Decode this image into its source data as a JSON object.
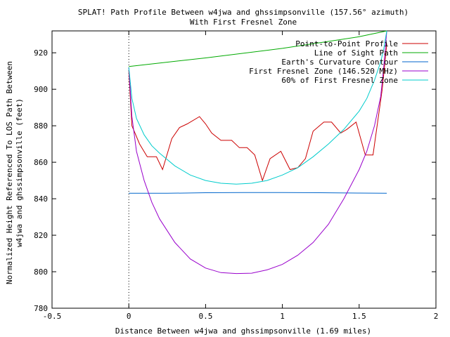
{
  "chart_data": {
    "type": "line",
    "title": "SPLAT! Path Profile Between w4jwa and ghssimpsonville (157.56° azimuth)",
    "subtitle": "With First Fresnel Zone",
    "xlabel": "Distance Between w4jwa and ghssimpsonville (1.69 miles)",
    "ylabel": "Normalized Height Referenced To LOS Path Between",
    "ylabel2": "w4jwa and ghssimpsonville (feet)",
    "xlim": [
      -0.5,
      2
    ],
    "ylim": [
      780,
      932
    ],
    "xticks": [
      -0.5,
      0,
      0.5,
      1,
      1.5,
      2
    ],
    "xtick_labels": [
      "-0.5",
      "0",
      "0.5",
      "1",
      "1.5",
      "2"
    ],
    "yticks": [
      780,
      800,
      820,
      840,
      860,
      880,
      900,
      920
    ],
    "ytick_labels": [
      "780",
      "800",
      "820",
      "840",
      "860",
      "880",
      "900",
      "920"
    ],
    "grid": false,
    "legend_position": "top-right",
    "series": [
      {
        "name": "Point-to-Point Profile",
        "color": "#cc0000",
        "x": [
          0,
          0.02,
          0.07,
          0.12,
          0.15,
          0.18,
          0.22,
          0.28,
          0.33,
          0.38,
          0.46,
          0.5,
          0.54,
          0.6,
          0.67,
          0.72,
          0.77,
          0.82,
          0.87,
          0.92,
          0.99,
          1.05,
          1.1,
          1.15,
          1.2,
          1.27,
          1.32,
          1.38,
          1.42,
          1.48,
          1.54,
          1.59,
          1.65,
          1.68
        ],
        "y": [
          910,
          880,
          870,
          863,
          863,
          863,
          856,
          873,
          879,
          881,
          885,
          881,
          876,
          872,
          872,
          868,
          868,
          864,
          850,
          862,
          866,
          856,
          857,
          862,
          877,
          882,
          882,
          876,
          878,
          882,
          864,
          864,
          900,
          925
        ]
      },
      {
        "name": "Line of Sight Path",
        "color": "#00aa00",
        "x": [
          0,
          0.5,
          1,
          1.5,
          1.68
        ],
        "y": [
          912.5,
          917.2,
          922.4,
          928.8,
          932
        ]
      },
      {
        "name": "Earth's Curvature Contour",
        "color": "#0066cc",
        "x": [
          0,
          0.25,
          0.5,
          0.75,
          1,
          1.25,
          1.5,
          1.68
        ],
        "y": [
          843,
          843,
          843.3,
          843.4,
          843.4,
          843.3,
          843.1,
          843
        ]
      },
      {
        "name": "First Fresnel Zone (146.520 MHz)",
        "color": "#9900cc",
        "x": [
          0,
          0.02,
          0.05,
          0.1,
          0.15,
          0.2,
          0.3,
          0.4,
          0.5,
          0.6,
          0.7,
          0.8,
          0.9,
          1.0,
          1.1,
          1.2,
          1.3,
          1.4,
          1.5,
          1.55,
          1.6,
          1.64,
          1.66,
          1.68
        ],
        "y": [
          912,
          885,
          866,
          850,
          838,
          829,
          816,
          807,
          802,
          799.5,
          799,
          799.2,
          801,
          804,
          809,
          816,
          826,
          840,
          856,
          866,
          880,
          896,
          912,
          932
        ]
      },
      {
        "name": "60% of First Fresnel Zone",
        "color": "#00cccc",
        "x": [
          0,
          0.02,
          0.05,
          0.1,
          0.15,
          0.2,
          0.3,
          0.4,
          0.5,
          0.6,
          0.7,
          0.8,
          0.9,
          1.0,
          1.1,
          1.2,
          1.3,
          1.4,
          1.5,
          1.55,
          1.6,
          1.64,
          1.66,
          1.68
        ],
        "y": [
          912,
          895,
          884,
          875,
          869,
          865,
          858,
          853,
          850,
          848.5,
          848,
          848.5,
          850,
          853,
          857,
          863,
          870,
          878,
          888,
          895,
          905,
          915,
          922,
          932
        ]
      }
    ]
  }
}
